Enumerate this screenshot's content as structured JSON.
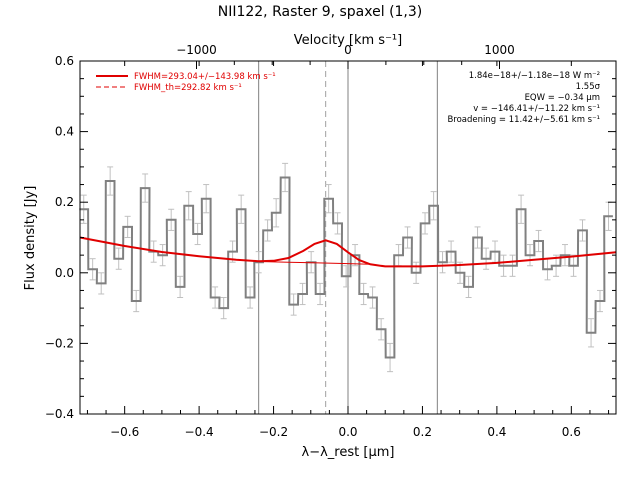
{
  "chart_data": {
    "type": "line",
    "title": "NII122, Raster 9, spaxel (1,3)",
    "xlabel": "λ−λ_rest [μm]",
    "ylabel": "Flux density [Jy]",
    "top_axis_label": "Velocity [km s⁻¹]",
    "xlim": [
      -0.72,
      0.72
    ],
    "ylim": [
      -0.4,
      0.6
    ],
    "x_ticks": [
      "−0.6",
      "−0.4",
      "−0.2",
      "0.0",
      "0.2",
      "0.4",
      "0.6"
    ],
    "x_tick_values": [
      -0.6,
      -0.4,
      -0.2,
      0.0,
      0.2,
      0.4,
      0.6
    ],
    "y_ticks": [
      "−0.4",
      "−0.2",
      "0.0",
      "0.2",
      "0.4",
      "0.6"
    ],
    "y_tick_values": [
      -0.4,
      -0.2,
      0.0,
      0.2,
      0.4,
      0.6
    ],
    "top_ticks": [
      "−1000",
      "0",
      "1000"
    ],
    "top_tick_x_values": [
      -0.407,
      0.0,
      0.407
    ],
    "vertical_lines_solid": [
      -0.24,
      0.0,
      0.24
    ],
    "vertical_line_dashed": -0.06,
    "legend": [
      {
        "label": "FWHM=293.04+/−143.98 km s⁻¹",
        "style": "solid",
        "color": "#e00000"
      },
      {
        "label": "FWHM_th=292.82 km s⁻¹",
        "style": "dashed",
        "color": "#e00000"
      }
    ],
    "annotations": [
      "1.84e−18+/−1.18e−18 W m⁻²",
      "1.55σ",
      "EQW = −0.34 μm",
      "v = −146.41+/−11.22 km s⁻¹",
      "Broadening = 11.42+/−5.61 km s⁻¹"
    ],
    "series": [
      {
        "style": "histogram-step",
        "color": "#808080",
        "step_width": 0.0235,
        "x": [
          -0.71,
          -0.686,
          -0.663,
          -0.639,
          -0.616,
          -0.592,
          -0.569,
          -0.545,
          -0.522,
          -0.498,
          -0.475,
          -0.451,
          -0.428,
          -0.404,
          -0.381,
          -0.357,
          -0.334,
          -0.31,
          -0.287,
          -0.263,
          -0.24,
          -0.216,
          -0.193,
          -0.169,
          -0.146,
          -0.122,
          -0.099,
          -0.075,
          -0.052,
          -0.028,
          -0.005,
          0.019,
          0.042,
          0.066,
          0.089,
          0.113,
          0.136,
          0.16,
          0.183,
          0.207,
          0.23,
          0.254,
          0.277,
          0.301,
          0.324,
          0.348,
          0.371,
          0.395,
          0.418,
          0.442,
          0.465,
          0.489,
          0.512,
          0.536,
          0.559,
          0.583,
          0.606,
          0.63,
          0.653,
          0.677,
          0.7
        ],
        "y": [
          0.18,
          0.01,
          -0.03,
          0.26,
          0.04,
          0.13,
          -0.08,
          0.24,
          0.06,
          0.05,
          0.15,
          -0.04,
          0.19,
          0.11,
          0.21,
          -0.07,
          -0.1,
          0.06,
          0.18,
          -0.07,
          0.03,
          0.12,
          0.17,
          0.27,
          -0.09,
          -0.06,
          0.03,
          -0.06,
          0.21,
          0.14,
          -0.01,
          0.05,
          -0.06,
          -0.07,
          -0.16,
          -0.24,
          0.05,
          0.1,
          0.0,
          0.14,
          0.19,
          0.03,
          0.06,
          0.0,
          -0.04,
          0.1,
          0.04,
          0.06,
          0.02,
          0.02,
          0.18,
          0.05,
          0.09,
          0.01,
          0.02,
          0.05,
          0.02,
          0.12,
          -0.17,
          -0.08,
          0.16
        ],
        "yerr": [
          0.04,
          0.03,
          0.03,
          0.04,
          0.03,
          0.03,
          0.03,
          0.04,
          0.03,
          0.03,
          0.03,
          0.03,
          0.04,
          0.03,
          0.04,
          0.03,
          0.03,
          0.03,
          0.04,
          0.03,
          0.03,
          0.03,
          0.04,
          0.04,
          0.03,
          0.03,
          0.03,
          0.03,
          0.04,
          0.03,
          0.03,
          0.03,
          0.03,
          0.03,
          0.03,
          0.04,
          0.03,
          0.03,
          0.03,
          0.03,
          0.04,
          0.03,
          0.03,
          0.03,
          0.03,
          0.03,
          0.03,
          0.03,
          0.03,
          0.03,
          0.04,
          0.03,
          0.03,
          0.03,
          0.03,
          0.03,
          0.03,
          0.03,
          0.04,
          0.03,
          0.04
        ]
      },
      {
        "style": "line",
        "color": "#e00000",
        "x": [
          -0.72,
          -0.6,
          -0.5,
          -0.4,
          -0.3,
          -0.24,
          -0.2,
          -0.16,
          -0.12,
          -0.09,
          -0.06,
          -0.03,
          0.0,
          0.03,
          0.06,
          0.1,
          0.2,
          0.3,
          0.4,
          0.5,
          0.6,
          0.72
        ],
        "y": [
          0.1,
          0.076,
          0.059,
          0.047,
          0.037,
          0.033,
          0.034,
          0.042,
          0.062,
          0.082,
          0.092,
          0.082,
          0.058,
          0.036,
          0.024,
          0.018,
          0.018,
          0.022,
          0.028,
          0.037,
          0.046,
          0.058
        ]
      },
      {
        "style": "line",
        "color": "#e00000",
        "x": [
          -0.24,
          -0.16,
          -0.08,
          0.0,
          0.06
        ],
        "y": [
          0.032,
          0.03,
          0.028,
          0.026,
          0.024
        ]
      }
    ]
  }
}
